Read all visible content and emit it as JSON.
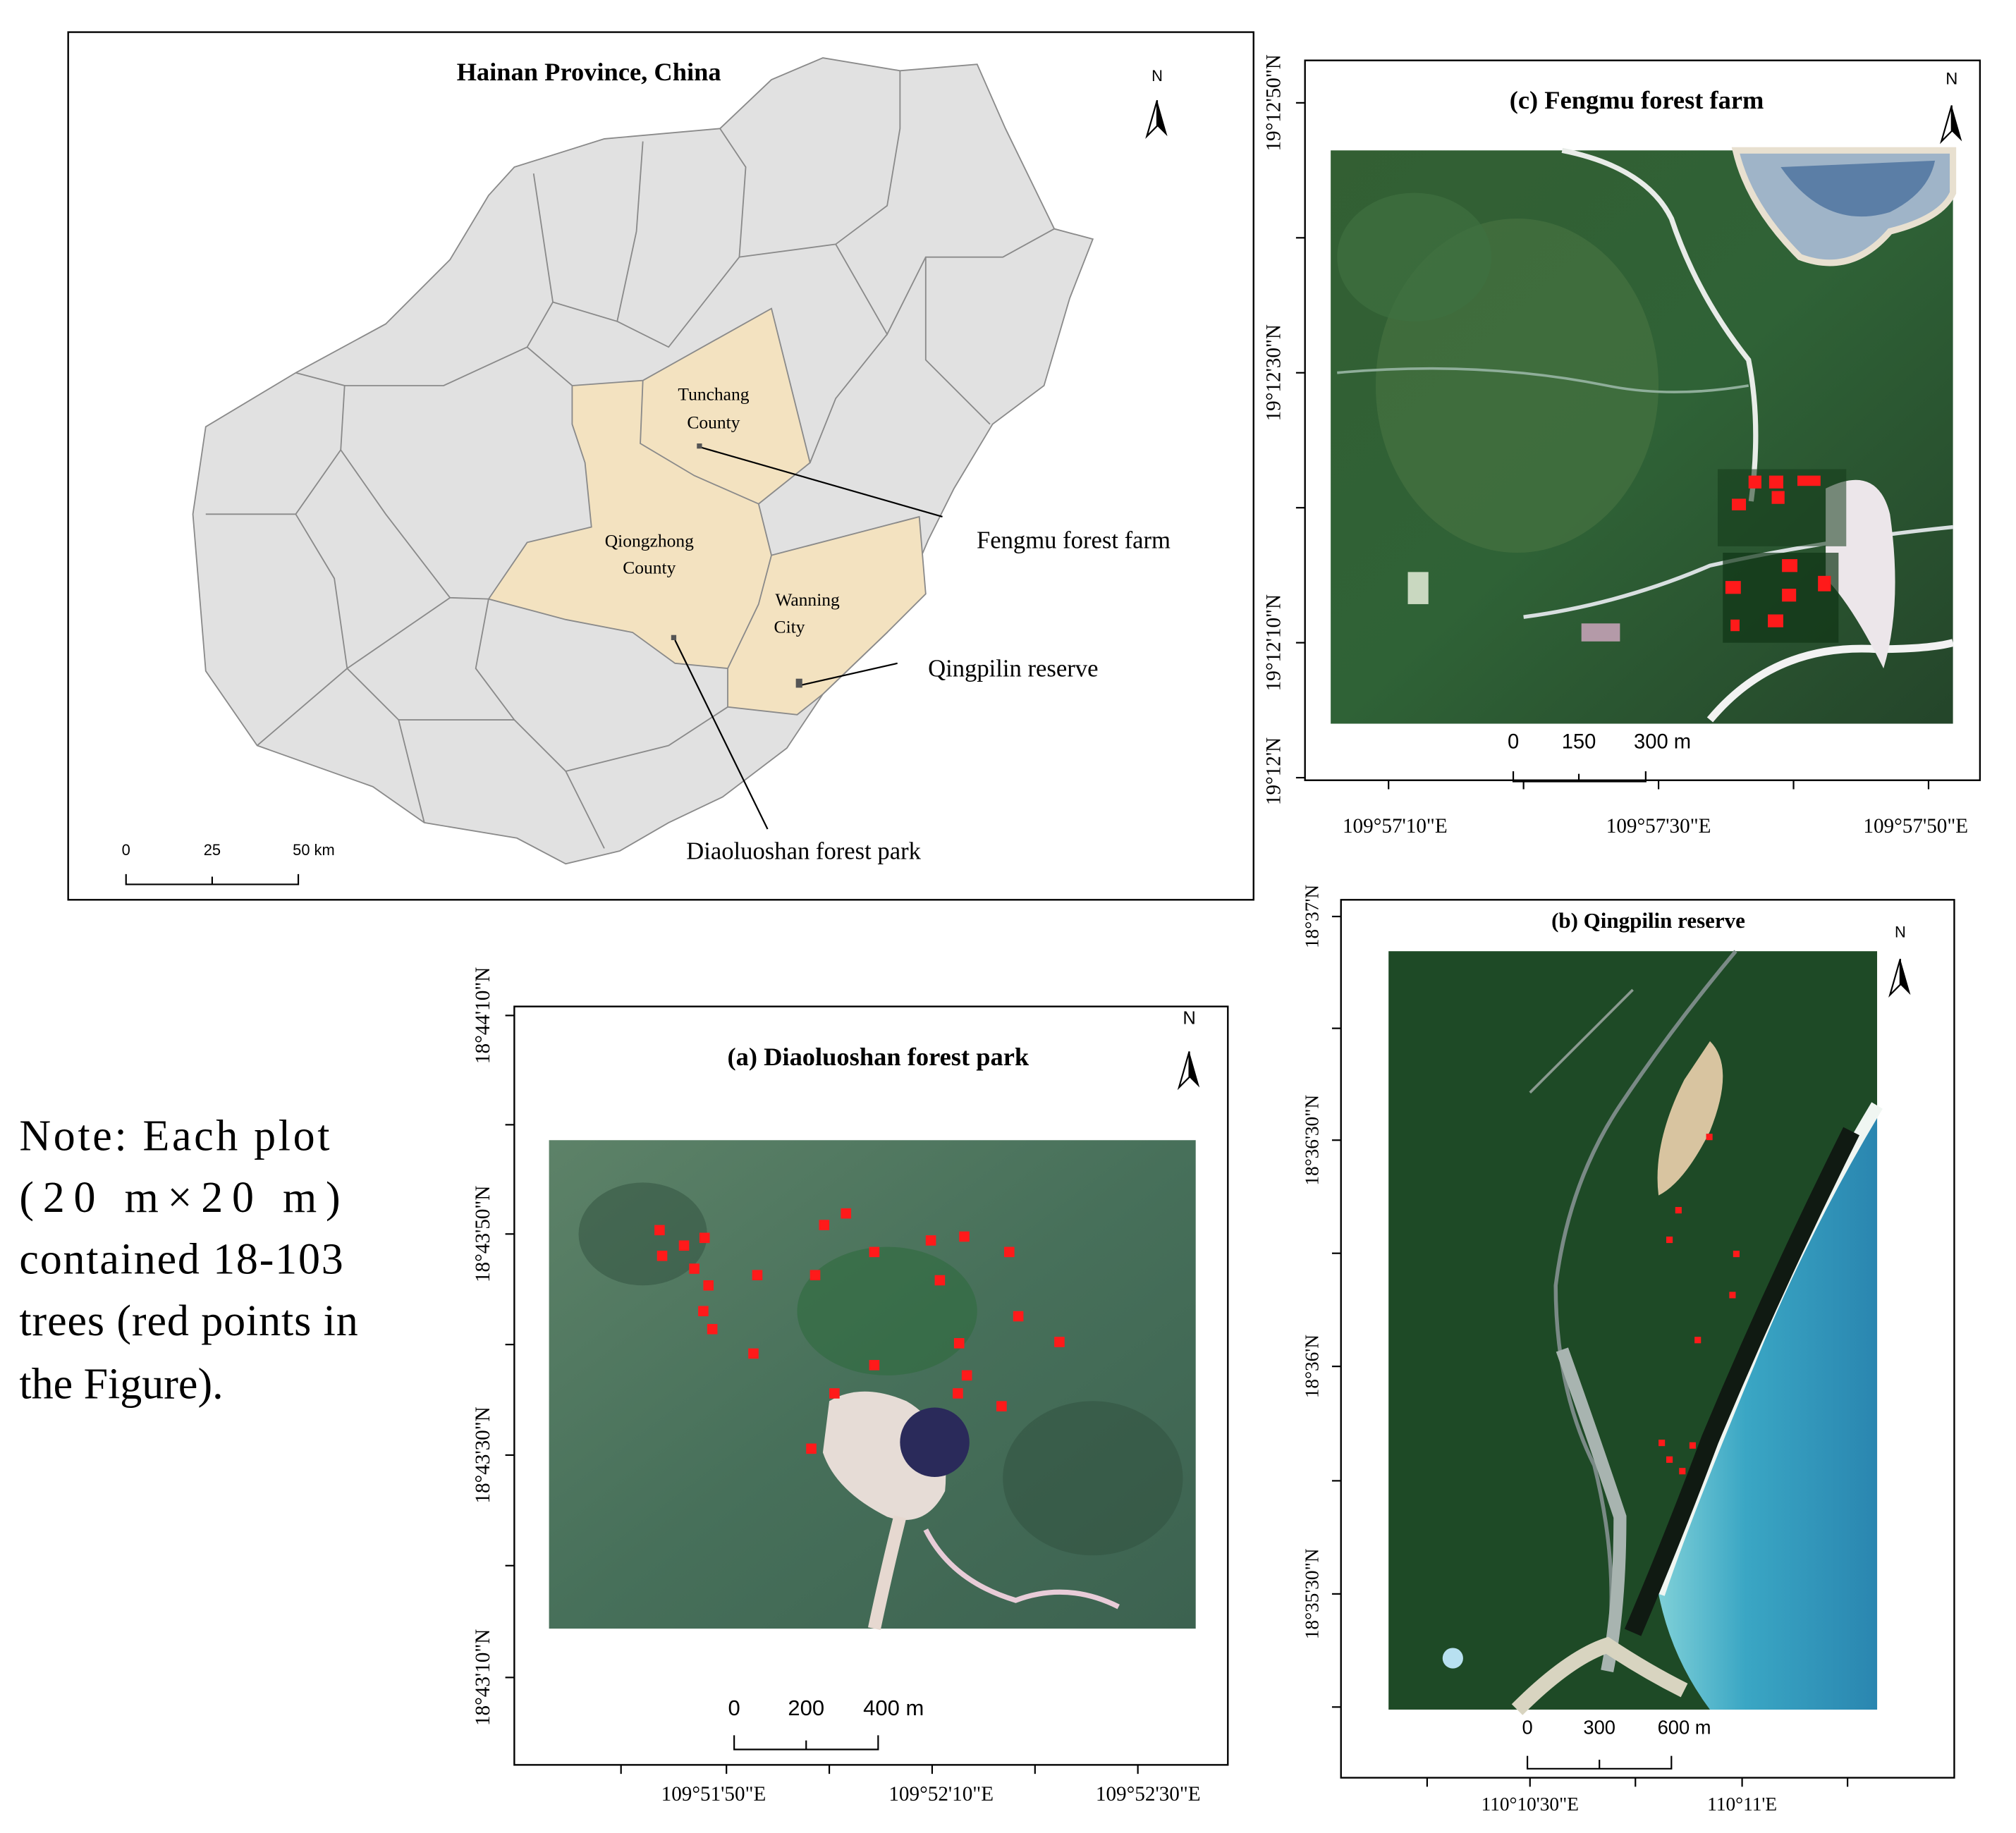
{
  "hainan_map": {
    "title": "Hainan Province, China",
    "north": "N",
    "counties": [
      {
        "lines": [
          "Tunchang",
          "County"
        ]
      },
      {
        "lines": [
          "Qiongzhong",
          "County"
        ]
      },
      {
        "lines": [
          "Wanning",
          "City"
        ]
      }
    ],
    "sites": [
      "Fengmu forest farm",
      "Qingpilin reserve",
      "Diaoluoshan forest park"
    ],
    "scale_bar": [
      "0",
      "25",
      "50 km"
    ]
  },
  "panel_a": {
    "title": "(a) Diaoluoshan forest park",
    "north": "N",
    "y_labels": [
      "18°44'10\"N",
      "18°43'50\"N",
      "18°43'30\"N",
      "18°43'10\"N"
    ],
    "x_labels": [
      "109°51'50\"E",
      "109°52'10\"E",
      "109°52'30\"E"
    ],
    "scale_bar": [
      "0",
      "200",
      "400 m"
    ]
  },
  "panel_b": {
    "title": "(b) Qingpilin reserve",
    "north": "N",
    "y_labels": [
      "18°37'N",
      "18°36'30\"N",
      "18°36'N",
      "18°35'30\"N"
    ],
    "x_labels": [
      "110°10'30\"E",
      "110°11'E"
    ],
    "scale_bar": [
      "0",
      "300",
      "600 m"
    ]
  },
  "panel_c": {
    "title": "(c) Fengmu forest farm",
    "north": "N",
    "y_labels": [
      "19°12'50\"N",
      "19°12'30\"N",
      "19°12'10\"N",
      "19°12'N"
    ],
    "x_labels": [
      "109°57'10\"E",
      "109°57'30\"E",
      "109°57'50\"E"
    ],
    "scale_bar": [
      "0",
      "150",
      "300 m"
    ]
  },
  "note": {
    "lines": [
      "Note: Each plot",
      "(20 m×20 m)",
      "contained 18-103",
      "trees (red points in",
      "the Figure)."
    ]
  }
}
